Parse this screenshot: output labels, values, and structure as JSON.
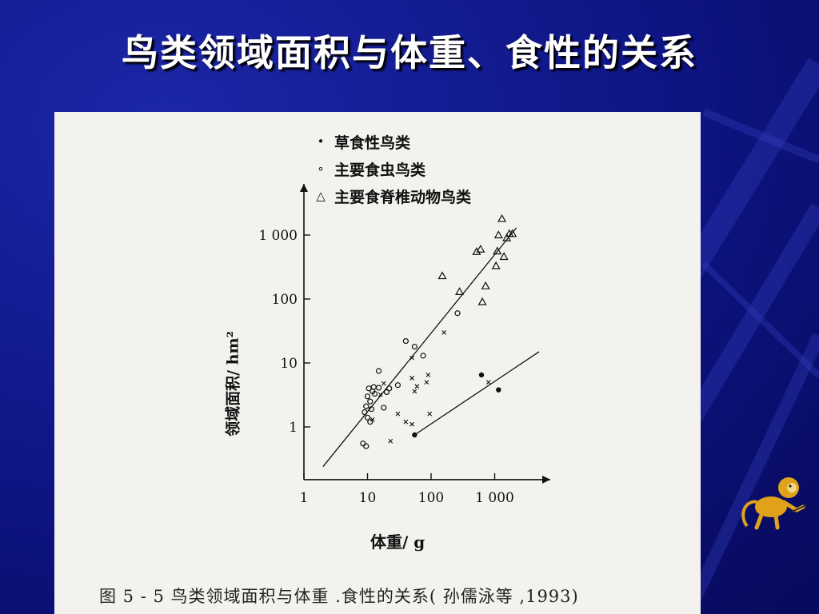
{
  "slide": {
    "title": "鸟类领域面积与体重、食性的关系"
  },
  "figure": {
    "caption": "图 5 - 5   鸟类领域面积与体重 .食性的关系(  孙儒泳等 ,1993)"
  },
  "colors": {
    "background": "#0d1178",
    "panel": "#f4f2ee",
    "ink": "#111111"
  },
  "icons": {
    "mascot": "monkey-icon"
  },
  "chart_data": {
    "type": "scatter",
    "title": "",
    "xlabel": "体重/ g",
    "ylabel": "领域面积/ hm²",
    "xscale": "log",
    "yscale": "log",
    "xlim": [
      1,
      4000
    ],
    "ylim": [
      0.15,
      3000
    ],
    "x_ticks": [
      {
        "value": 1,
        "label": "1"
      },
      {
        "value": 10,
        "label": "10"
      },
      {
        "value": 100,
        "label": "100"
      },
      {
        "value": 1000,
        "label": "1 000"
      }
    ],
    "y_ticks": [
      {
        "value": 1,
        "label": "1"
      },
      {
        "value": 10,
        "label": "10"
      },
      {
        "value": 100,
        "label": "100"
      },
      {
        "value": 1000,
        "label": "1 000"
      }
    ],
    "legend": {
      "position": "top-left"
    },
    "series": [
      {
        "name": "草食性鸟类",
        "marker": "filled-circle",
        "symbol": "•",
        "points": [
          [
            55,
            0.75
          ],
          [
            620,
            6.5
          ],
          [
            1150,
            3.8
          ]
        ]
      },
      {
        "name": "主要食虫鸟类",
        "marker": "open-circle",
        "symbol": "∘",
        "points": [
          [
            9,
            1.7
          ],
          [
            9.5,
            2.1
          ],
          [
            10,
            1.4
          ],
          [
            10,
            3.0
          ],
          [
            10.5,
            4.0
          ],
          [
            11,
            1.2
          ],
          [
            11,
            2.5
          ],
          [
            11.5,
            1.9
          ],
          [
            12,
            3.6
          ],
          [
            12.5,
            4.2
          ],
          [
            13,
            3.3
          ],
          [
            15,
            7.5
          ],
          [
            15,
            4.1
          ],
          [
            18,
            2.0
          ],
          [
            20,
            3.5
          ],
          [
            22,
            4.0
          ],
          [
            30,
            4.5
          ],
          [
            40,
            22
          ],
          [
            55,
            18
          ],
          [
            75,
            13
          ],
          [
            260,
            60
          ],
          [
            8.5,
            0.55
          ],
          [
            9.5,
            0.5
          ]
        ]
      },
      {
        "name": "主要食脊椎动物鸟类",
        "marker": "open-triangle",
        "symbol": "△",
        "points": [
          [
            150,
            230
          ],
          [
            280,
            130
          ],
          [
            520,
            550
          ],
          [
            600,
            600
          ],
          [
            640,
            90
          ],
          [
            720,
            160
          ],
          [
            1050,
            330
          ],
          [
            1100,
            560
          ],
          [
            1150,
            1000
          ],
          [
            1300,
            1800
          ],
          [
            1400,
            460
          ],
          [
            1550,
            900
          ],
          [
            1700,
            1050
          ],
          [
            1900,
            1050
          ]
        ]
      },
      {
        "name": "",
        "marker": "cross",
        "symbol": "×",
        "points": [
          [
            12,
            1.3
          ],
          [
            16,
            3.2
          ],
          [
            18,
            4.8
          ],
          [
            23,
            0.6
          ],
          [
            30,
            1.6
          ],
          [
            40,
            1.2
          ],
          [
            50,
            1.1
          ],
          [
            50,
            5.8
          ],
          [
            50,
            12
          ],
          [
            55,
            3.6
          ],
          [
            60,
            4.3
          ],
          [
            85,
            5.0
          ],
          [
            90,
            6.5
          ],
          [
            95,
            1.6
          ],
          [
            160,
            30
          ],
          [
            800,
            5.0
          ]
        ]
      }
    ],
    "lines": [
      {
        "name": "",
        "from": [
          2,
          0.24
        ],
        "to": [
          2200,
          1300
        ]
      },
      {
        "name": "",
        "from": [
          55,
          0.75
        ],
        "to": [
          5000,
          15
        ]
      }
    ]
  }
}
